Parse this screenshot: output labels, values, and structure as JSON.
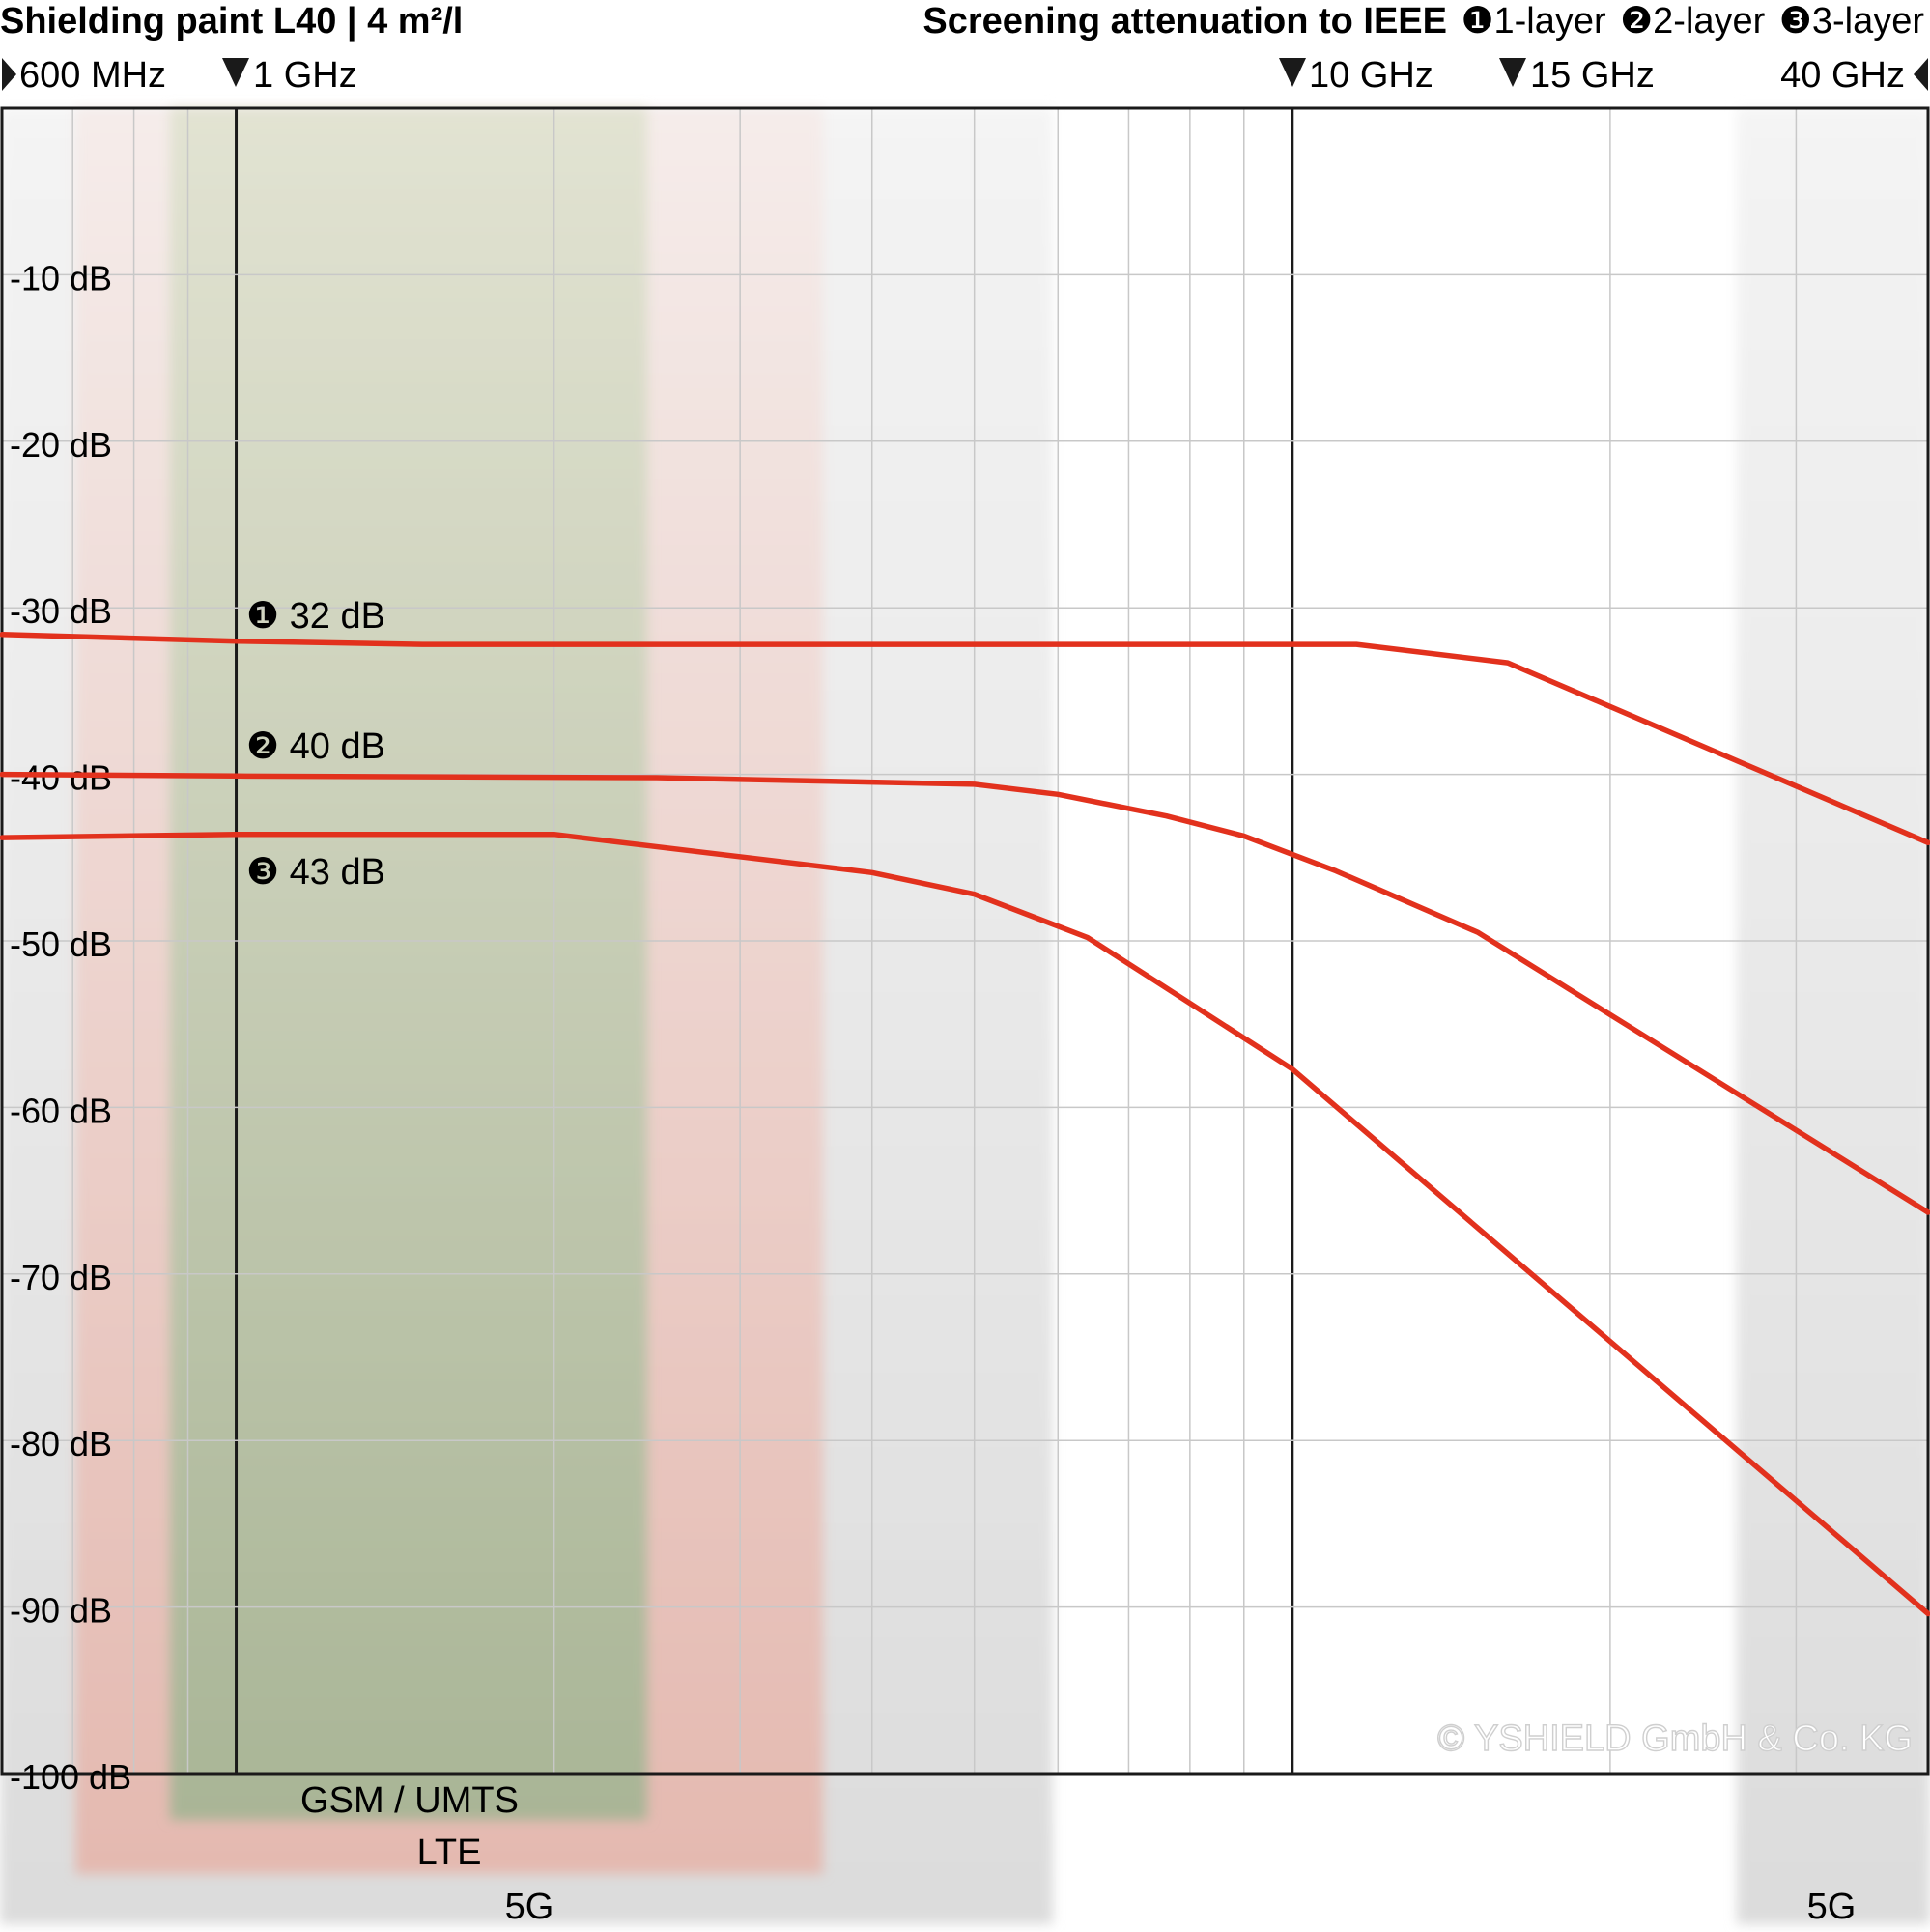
{
  "header": {
    "title": "Shielding paint L40 | 4 m²/l",
    "legend_title": "Screening attenuation to IEEE",
    "legend_items": [
      "❶1-layer",
      "❷2-layer",
      "❸3-layer"
    ]
  },
  "freq_markers": [
    "600 MHz",
    "1 GHz",
    "10 GHz",
    "15 GHz",
    "40 GHz"
  ],
  "annotations": [
    "❶ 32 dB",
    "❷ 40 dB",
    "❸ 43 dB"
  ],
  "bands": [
    "GSM / UMTS",
    "LTE",
    "5G",
    "5G"
  ],
  "copyright": "© YSHIELD GmbH & Co. KG",
  "colors": {
    "curve": "#e2311d",
    "grid": "#c8c8c8",
    "frame": "#1a1a1a",
    "band_gsm": "#a9b596",
    "band_lte": "#e6b8ae",
    "band_5g": "#dedede"
  },
  "chart_data": {
    "type": "line",
    "x_scale": "log",
    "xlim": [
      600,
      40000
    ],
    "x_unit": "MHz",
    "ylim": [
      0,
      -100
    ],
    "ytick_labels": [
      "-10 dB",
      "-20 dB",
      "-30 dB",
      "-40 dB",
      "-50 dB",
      "-60 dB",
      "-70 dB",
      "-80 dB",
      "-90 dB",
      "-100 dB"
    ],
    "ytick_values": [
      -10,
      -20,
      -30,
      -40,
      -50,
      -60,
      -70,
      -80,
      -90,
      -100
    ],
    "x_grid": [
      700,
      800,
      900,
      1000,
      2000,
      3000,
      4000,
      5000,
      6000,
      7000,
      8000,
      9000,
      10000,
      20000,
      30000
    ],
    "x_major": [
      1000,
      10000
    ],
    "grid": true,
    "series": [
      {
        "label": "❶",
        "x": [
          600,
          1000,
          1500,
          10000,
          11500,
          16000,
          40000
        ],
        "y": [
          -31.6,
          -32.0,
          -32.2,
          -32.2,
          -32.2,
          -33.3,
          -44.1
        ]
      },
      {
        "label": "❷",
        "x": [
          600,
          1000,
          2500,
          5000,
          6000,
          7600,
          9000,
          11000,
          15000,
          40000
        ],
        "y": [
          -40.0,
          -40.1,
          -40.2,
          -40.6,
          -41.2,
          -42.5,
          -43.7,
          -45.8,
          -49.5,
          -66.3
        ]
      },
      {
        "label": "❸",
        "x": [
          600,
          1000,
          2000,
          4000,
          5000,
          6400,
          7500,
          10000,
          40000
        ],
        "y": [
          -43.8,
          -43.6,
          -43.6,
          -45.9,
          -47.2,
          -49.8,
          -52.6,
          -57.7,
          -90.4
        ]
      }
    ],
    "bands": [
      {
        "label": "GSM / UMTS",
        "from": 700,
        "to": 2700
      },
      {
        "label": "LTE",
        "from": 650,
        "to": 3600
      },
      {
        "label": "5G",
        "from": 600,
        "to": 6000
      },
      {
        "label": "5G",
        "from": 24000,
        "to": 40000
      }
    ]
  }
}
